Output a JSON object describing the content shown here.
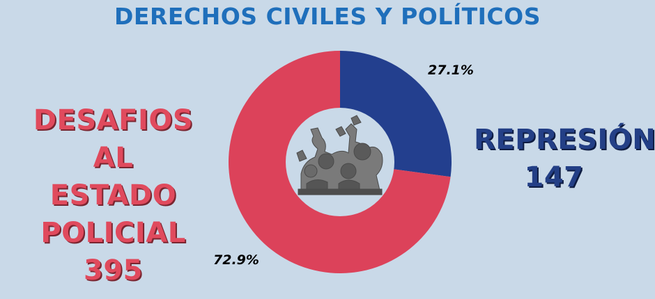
{
  "title": "DERECHOS CIVILES Y POLÍTICOS",
  "chart_data": {
    "type": "pie",
    "donut": true,
    "slices": [
      {
        "label_lines": [
          "REPRESIÓN",
          "147"
        ],
        "value": 147,
        "percent_label": "27.1%",
        "color": "#233f8e"
      },
      {
        "label_lines": [
          "DESAFIOS",
          "AL ESTADO",
          "POLICIAL",
          "395"
        ],
        "value": 395,
        "percent_label": "72.9%",
        "color": "#dc425a"
      }
    ],
    "center_image": "protest-crowd-illustration",
    "legend": "none"
  }
}
